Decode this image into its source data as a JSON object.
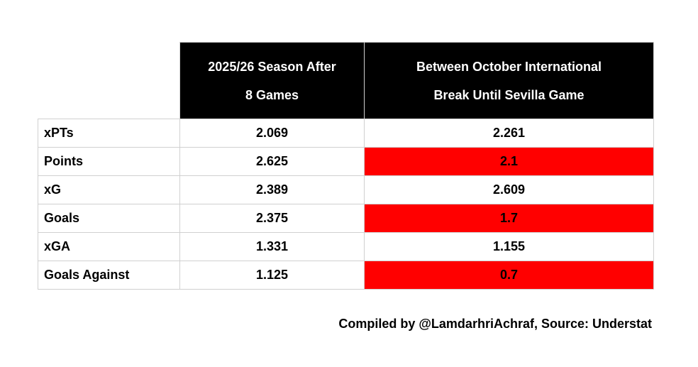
{
  "colors": {
    "header_bg": "#000000",
    "header_text": "#ffffff",
    "highlight_red": "#ff0000",
    "grid_border": "#d0d0d0",
    "body_text": "#000000",
    "background": "#ffffff"
  },
  "header": {
    "col_season_line1": "2025/26 Season After",
    "col_season_line2": "8 Games",
    "col_recent_line1": "Between October International",
    "col_recent_line2": "Break Until Sevilla Game"
  },
  "chart_data": {
    "type": "table",
    "columns": [
      "",
      "2025/26 Season After 8 Games",
      "Between October International Break Until Sevilla Game"
    ],
    "rows": [
      {
        "label": "xPTs",
        "season": "2.069",
        "recent": "2.261",
        "recent_highlight": false
      },
      {
        "label": "Points",
        "season": "2.625",
        "recent": "2.1",
        "recent_highlight": true
      },
      {
        "label": "xG",
        "season": "2.389",
        "recent": "2.609",
        "recent_highlight": false
      },
      {
        "label": "Goals",
        "season": "2.375",
        "recent": "1.7",
        "recent_highlight": true
      },
      {
        "label": "xGA",
        "season": "1.331",
        "recent": "1.155",
        "recent_highlight": false
      },
      {
        "label": "Goals Against",
        "season": "1.125",
        "recent": "0.7",
        "recent_highlight": true
      }
    ],
    "highlight_meaning": "red cells mark values in the recent-period column",
    "legend_position": "none",
    "grid": true
  },
  "footer": {
    "credit": "Compiled by @LamdarhriAchraf, Source: Understat"
  }
}
